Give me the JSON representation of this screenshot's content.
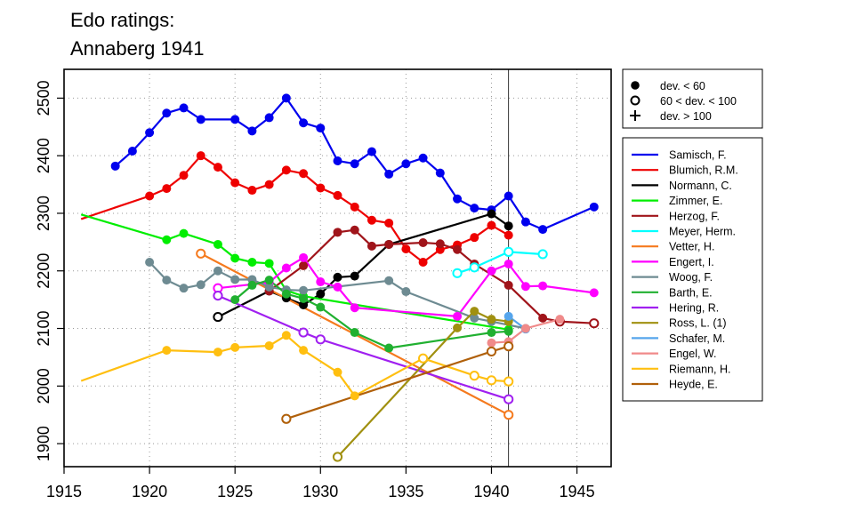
{
  "chart_data": {
    "type": "line",
    "title_lines": [
      "Edo ratings:",
      "Annaberg 1941"
    ],
    "xlabel": "",
    "ylabel": "",
    "xlim": [
      1915,
      1947
    ],
    "ylim": [
      1860,
      2550
    ],
    "x_ticks": [
      1915,
      1920,
      1925,
      1930,
      1935,
      1940,
      1945
    ],
    "y_ticks": [
      1900,
      2000,
      2100,
      2200,
      2300,
      2400,
      2500
    ],
    "grid": true,
    "reference_line_x": 1941,
    "marker_legend": [
      {
        "label": "dev. < 60",
        "symbol": "filled"
      },
      {
        "label": "60 < dev. < 100",
        "symbol": "open"
      },
      {
        "label": "dev. > 100",
        "symbol": "plus"
      }
    ],
    "series": [
      {
        "name": "Samisch, F.",
        "color": "#0000ee",
        "points": [
          {
            "x": 1918,
            "y": 2382,
            "m": "filled"
          },
          {
            "x": 1919,
            "y": 2408,
            "m": "filled"
          },
          {
            "x": 1920,
            "y": 2440,
            "m": "filled"
          },
          {
            "x": 1921,
            "y": 2474,
            "m": "filled"
          },
          {
            "x": 1922,
            "y": 2483,
            "m": "filled"
          },
          {
            "x": 1923,
            "y": 2463,
            "m": "filled"
          },
          {
            "x": 1925,
            "y": 2463,
            "m": "filled"
          },
          {
            "x": 1926,
            "y": 2443,
            "m": "filled"
          },
          {
            "x": 1927,
            "y": 2466,
            "m": "filled"
          },
          {
            "x": 1928,
            "y": 2500,
            "m": "filled"
          },
          {
            "x": 1929,
            "y": 2457,
            "m": "filled"
          },
          {
            "x": 1930,
            "y": 2448,
            "m": "filled"
          },
          {
            "x": 1931,
            "y": 2391,
            "m": "filled"
          },
          {
            "x": 1932,
            "y": 2386,
            "m": "filled"
          },
          {
            "x": 1933,
            "y": 2407,
            "m": "filled"
          },
          {
            "x": 1934,
            "y": 2368,
            "m": "filled"
          },
          {
            "x": 1935,
            "y": 2386,
            "m": "filled"
          },
          {
            "x": 1936,
            "y": 2396,
            "m": "filled"
          },
          {
            "x": 1937,
            "y": 2370,
            "m": "filled"
          },
          {
            "x": 1938,
            "y": 2325,
            "m": "filled"
          },
          {
            "x": 1939,
            "y": 2309,
            "m": "filled"
          },
          {
            "x": 1940,
            "y": 2306,
            "m": "filled"
          },
          {
            "x": 1941,
            "y": 2330,
            "m": "filled"
          },
          {
            "x": 1942,
            "y": 2285,
            "m": "filled"
          },
          {
            "x": 1943,
            "y": 2272,
            "m": "filled"
          },
          {
            "x": 1946,
            "y": 2311,
            "m": "filled"
          }
        ]
      },
      {
        "name": "Blumich, R.M.",
        "color": "#ee0000",
        "points": [
          {
            "x": 1916,
            "y": 2290,
            "m": "none"
          },
          {
            "x": 1920,
            "y": 2330,
            "m": "filled"
          },
          {
            "x": 1921,
            "y": 2343,
            "m": "filled"
          },
          {
            "x": 1922,
            "y": 2366,
            "m": "filled"
          },
          {
            "x": 1923,
            "y": 2400,
            "m": "filled"
          },
          {
            "x": 1924,
            "y": 2380,
            "m": "filled"
          },
          {
            "x": 1925,
            "y": 2353,
            "m": "filled"
          },
          {
            "x": 1926,
            "y": 2340,
            "m": "filled"
          },
          {
            "x": 1927,
            "y": 2350,
            "m": "filled"
          },
          {
            "x": 1928,
            "y": 2375,
            "m": "filled"
          },
          {
            "x": 1929,
            "y": 2369,
            "m": "filled"
          },
          {
            "x": 1930,
            "y": 2344,
            "m": "filled"
          },
          {
            "x": 1931,
            "y": 2331,
            "m": "filled"
          },
          {
            "x": 1932,
            "y": 2311,
            "m": "filled"
          },
          {
            "x": 1933,
            "y": 2288,
            "m": "filled"
          },
          {
            "x": 1934,
            "y": 2283,
            "m": "filled"
          },
          {
            "x": 1935,
            "y": 2238,
            "m": "filled"
          },
          {
            "x": 1936,
            "y": 2215,
            "m": "filled"
          },
          {
            "x": 1937,
            "y": 2237,
            "m": "filled"
          },
          {
            "x": 1938,
            "y": 2245,
            "m": "filled"
          },
          {
            "x": 1939,
            "y": 2258,
            "m": "filled"
          },
          {
            "x": 1940,
            "y": 2279,
            "m": "filled"
          },
          {
            "x": 1941,
            "y": 2262,
            "m": "filled"
          }
        ]
      },
      {
        "name": "Normann, C.",
        "color": "#000000",
        "points": [
          {
            "x": 1924,
            "y": 2120,
            "m": "open"
          },
          {
            "x": 1927,
            "y": 2165,
            "m": "filled"
          },
          {
            "x": 1928,
            "y": 2153,
            "m": "filled"
          },
          {
            "x": 1929,
            "y": 2141,
            "m": "filled"
          },
          {
            "x": 1930,
            "y": 2160,
            "m": "filled"
          },
          {
            "x": 1931,
            "y": 2189,
            "m": "filled"
          },
          {
            "x": 1932,
            "y": 2191,
            "m": "filled"
          },
          {
            "x": 1934,
            "y": 2246,
            "m": "filled"
          },
          {
            "x": 1940,
            "y": 2299,
            "m": "filled"
          },
          {
            "x": 1941,
            "y": 2278,
            "m": "filled"
          }
        ]
      },
      {
        "name": "Zimmer, E.",
        "color": "#00ee00",
        "points": [
          {
            "x": 1916,
            "y": 2298,
            "m": "none"
          },
          {
            "x": 1921,
            "y": 2254,
            "m": "filled"
          },
          {
            "x": 1922,
            "y": 2265,
            "m": "filled"
          },
          {
            "x": 1924,
            "y": 2246,
            "m": "filled"
          },
          {
            "x": 1925,
            "y": 2222,
            "m": "filled"
          },
          {
            "x": 1926,
            "y": 2215,
            "m": "filled"
          },
          {
            "x": 1927,
            "y": 2213,
            "m": "filled"
          },
          {
            "x": 1928,
            "y": 2166,
            "m": "filled"
          },
          {
            "x": 1929,
            "y": 2156,
            "m": "filled"
          },
          {
            "x": 1941,
            "y": 2098,
            "m": "filled"
          }
        ]
      },
      {
        "name": "Herzog, F.",
        "color": "#a0141a",
        "points": [
          {
            "x": 1927,
            "y": 2165,
            "m": "filled"
          },
          {
            "x": 1929,
            "y": 2209,
            "m": "filled"
          },
          {
            "x": 1931,
            "y": 2267,
            "m": "filled"
          },
          {
            "x": 1932,
            "y": 2271,
            "m": "filled"
          },
          {
            "x": 1933,
            "y": 2243,
            "m": "filled"
          },
          {
            "x": 1934,
            "y": 2246,
            "m": "filled"
          },
          {
            "x": 1936,
            "y": 2249,
            "m": "filled"
          },
          {
            "x": 1937,
            "y": 2247,
            "m": "filled"
          },
          {
            "x": 1938,
            "y": 2237,
            "m": "filled"
          },
          {
            "x": 1939,
            "y": 2212,
            "m": "filled"
          },
          {
            "x": 1941,
            "y": 2175,
            "m": "filled"
          },
          {
            "x": 1943,
            "y": 2118,
            "m": "filled"
          },
          {
            "x": 1944,
            "y": 2112,
            "m": "open"
          },
          {
            "x": 1946,
            "y": 2109,
            "m": "open"
          }
        ]
      },
      {
        "name": "Meyer, Herm.",
        "color": "#00ffff",
        "points": [
          {
            "x": 1938,
            "y": 2196,
            "m": "open"
          },
          {
            "x": 1939,
            "y": 2206,
            "m": "open"
          },
          {
            "x": 1941,
            "y": 2233,
            "m": "open"
          },
          {
            "x": 1943,
            "y": 2229,
            "m": "open"
          }
        ]
      },
      {
        "name": "Vetter, H.",
        "color": "#f57a1e",
        "points": [
          {
            "x": 1923,
            "y": 2230,
            "m": "open"
          },
          {
            "x": 1941,
            "y": 1950,
            "m": "open"
          }
        ]
      },
      {
        "name": "Engert, I.",
        "color": "#ff00ff",
        "points": [
          {
            "x": 1924,
            "y": 2170,
            "m": "open"
          },
          {
            "x": 1927,
            "y": 2180,
            "m": "filled"
          },
          {
            "x": 1928,
            "y": 2205,
            "m": "filled"
          },
          {
            "x": 1929,
            "y": 2223,
            "m": "filled"
          },
          {
            "x": 1930,
            "y": 2181,
            "m": "filled"
          },
          {
            "x": 1931,
            "y": 2172,
            "m": "filled"
          },
          {
            "x": 1932,
            "y": 2136,
            "m": "filled"
          },
          {
            "x": 1938,
            "y": 2121,
            "m": "filled"
          },
          {
            "x": 1940,
            "y": 2200,
            "m": "filled"
          },
          {
            "x": 1941,
            "y": 2212,
            "m": "filled"
          },
          {
            "x": 1942,
            "y": 2173,
            "m": "filled"
          },
          {
            "x": 1943,
            "y": 2174,
            "m": "filled"
          },
          {
            "x": 1946,
            "y": 2162,
            "m": "filled"
          }
        ]
      },
      {
        "name": "Woog, F.",
        "color": "#6e8b92",
        "points": [
          {
            "x": 1920,
            "y": 2215,
            "m": "filled"
          },
          {
            "x": 1921,
            "y": 2184,
            "m": "filled"
          },
          {
            "x": 1922,
            "y": 2170,
            "m": "filled"
          },
          {
            "x": 1923,
            "y": 2176,
            "m": "filled"
          },
          {
            "x": 1924,
            "y": 2200,
            "m": "filled"
          },
          {
            "x": 1925,
            "y": 2185,
            "m": "filled"
          },
          {
            "x": 1926,
            "y": 2185,
            "m": "filled"
          },
          {
            "x": 1927,
            "y": 2172,
            "m": "filled"
          },
          {
            "x": 1928,
            "y": 2167,
            "m": "filled"
          },
          {
            "x": 1929,
            "y": 2166,
            "m": "filled"
          },
          {
            "x": 1934,
            "y": 2183,
            "m": "filled"
          },
          {
            "x": 1935,
            "y": 2164,
            "m": "filled"
          },
          {
            "x": 1939,
            "y": 2118,
            "m": "filled"
          },
          {
            "x": 1940,
            "y": 2112,
            "m": "filled"
          },
          {
            "x": 1942,
            "y": 2100,
            "m": "filled"
          }
        ]
      },
      {
        "name": "Barth, E.",
        "color": "#20b030",
        "points": [
          {
            "x": 1925,
            "y": 2150,
            "m": "filled"
          },
          {
            "x": 1926,
            "y": 2175,
            "m": "filled"
          },
          {
            "x": 1927,
            "y": 2184,
            "m": "filled"
          },
          {
            "x": 1928,
            "y": 2160,
            "m": "filled"
          },
          {
            "x": 1929,
            "y": 2152,
            "m": "filled"
          },
          {
            "x": 1930,
            "y": 2137,
            "m": "filled"
          },
          {
            "x": 1932,
            "y": 2093,
            "m": "filled"
          },
          {
            "x": 1934,
            "y": 2066,
            "m": "filled"
          },
          {
            "x": 1940,
            "y": 2093,
            "m": "filled"
          },
          {
            "x": 1941,
            "y": 2095,
            "m": "filled"
          }
        ]
      },
      {
        "name": "Hering, R.",
        "color": "#a020f0",
        "points": [
          {
            "x": 1924,
            "y": 2157,
            "m": "open"
          },
          {
            "x": 1929,
            "y": 2093,
            "m": "open"
          },
          {
            "x": 1930,
            "y": 2081,
            "m": "open"
          },
          {
            "x": 1941,
            "y": 1977,
            "m": "open"
          }
        ]
      },
      {
        "name": "Ross, L. (1)",
        "color": "#a09010",
        "points": [
          {
            "x": 1931,
            "y": 1877,
            "m": "open"
          },
          {
            "x": 1938,
            "y": 2101,
            "m": "filled"
          },
          {
            "x": 1939,
            "y": 2130,
            "m": "filled"
          },
          {
            "x": 1940,
            "y": 2116,
            "m": "filled"
          },
          {
            "x": 1941,
            "y": 2112,
            "m": "filled"
          }
        ]
      },
      {
        "name": "Schafer, M.",
        "color": "#56a5ec",
        "points": [
          {
            "x": 1941,
            "y": 2121,
            "m": "filled"
          },
          {
            "x": 1942,
            "y": 2099,
            "m": "filled"
          }
        ]
      },
      {
        "name": "Engel, W.",
        "color": "#f08a8a",
        "points": [
          {
            "x": 1940,
            "y": 2075,
            "m": "filled"
          },
          {
            "x": 1941,
            "y": 2077,
            "m": "filled"
          },
          {
            "x": 1942,
            "y": 2100,
            "m": "filled"
          },
          {
            "x": 1944,
            "y": 2116,
            "m": "filled"
          }
        ]
      },
      {
        "name": "Riemann, H.",
        "color": "#ffbf10",
        "points": [
          {
            "x": 1916,
            "y": 2009,
            "m": "none"
          },
          {
            "x": 1921,
            "y": 2062,
            "m": "filled"
          },
          {
            "x": 1924,
            "y": 2059,
            "m": "filled"
          },
          {
            "x": 1925,
            "y": 2067,
            "m": "filled"
          },
          {
            "x": 1927,
            "y": 2070,
            "m": "filled"
          },
          {
            "x": 1928,
            "y": 2088,
            "m": "filled"
          },
          {
            "x": 1929,
            "y": 2062,
            "m": "filled"
          },
          {
            "x": 1931,
            "y": 2024,
            "m": "filled"
          },
          {
            "x": 1932,
            "y": 1983,
            "m": "filled"
          },
          {
            "x": 1936,
            "y": 2048,
            "m": "open"
          },
          {
            "x": 1939,
            "y": 2018,
            "m": "open"
          },
          {
            "x": 1940,
            "y": 2010,
            "m": "open"
          },
          {
            "x": 1941,
            "y": 2008,
            "m": "open"
          }
        ]
      },
      {
        "name": "Heyde, E.",
        "color": "#b0600a",
        "points": [
          {
            "x": 1928,
            "y": 1943,
            "m": "open"
          },
          {
            "x": 1940,
            "y": 2060,
            "m": "open"
          },
          {
            "x": 1941,
            "y": 2069,
            "m": "open"
          }
        ]
      }
    ]
  }
}
